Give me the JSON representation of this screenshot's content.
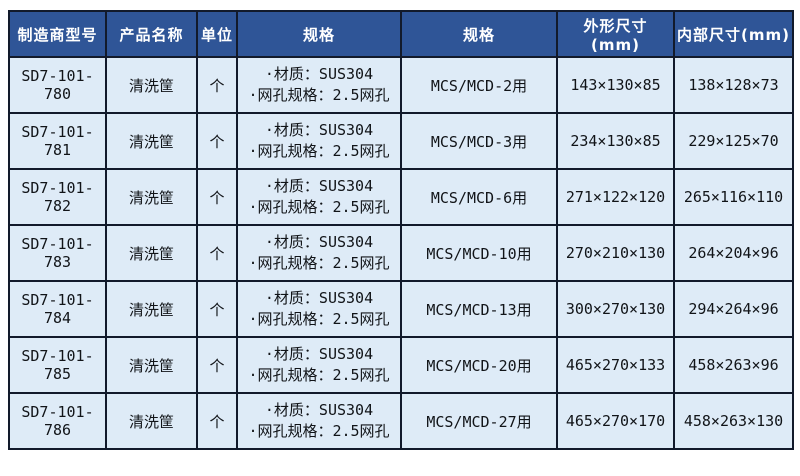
{
  "colors": {
    "header_bg": "#2F5597",
    "header_text": "#FFFFFF",
    "row_bg": "#DEEBF7",
    "body_text": "#111418",
    "grid_border": "#121A2B",
    "page_bg": "#FFFFFF"
  },
  "table": {
    "headers": [
      "制造商型号",
      "产品名称",
      "单位",
      "规格",
      "规格",
      "外形尺寸(mm)",
      "内部尺寸(mm)"
    ],
    "rows": [
      {
        "model": "SD7-101-780",
        "product": "清洗筐",
        "unit": "个",
        "spec_material": "·材质：SUS304",
        "spec_mesh": "·网孔规格：2.5网孔",
        "compat": "MCS/MCD-2用",
        "outer": "143×130×85",
        "inner": "138×128×73"
      },
      {
        "model": "SD7-101-781",
        "product": "清洗筐",
        "unit": "个",
        "spec_material": "·材质：SUS304",
        "spec_mesh": "·网孔规格：2.5网孔",
        "compat": "MCS/MCD-3用",
        "outer": "234×130×85",
        "inner": "229×125×70"
      },
      {
        "model": "SD7-101-782",
        "product": "清洗筐",
        "unit": "个",
        "spec_material": "·材质：SUS304",
        "spec_mesh": "·网孔规格：2.5网孔",
        "compat": "MCS/MCD-6用",
        "outer": "271×122×120",
        "inner": "265×116×110"
      },
      {
        "model": "SD7-101-783",
        "product": "清洗筐",
        "unit": "个",
        "spec_material": "·材质：SUS304",
        "spec_mesh": "·网孔规格：2.5网孔",
        "compat": "MCS/MCD-10用",
        "outer": "270×210×130",
        "inner": "264×204×96"
      },
      {
        "model": "SD7-101-784",
        "product": "清洗筐",
        "unit": "个",
        "spec_material": "·材质：SUS304",
        "spec_mesh": "·网孔规格：2.5网孔",
        "compat": "MCS/MCD-13用",
        "outer": "300×270×130",
        "inner": "294×264×96"
      },
      {
        "model": "SD7-101-785",
        "product": "清洗筐",
        "unit": "个",
        "spec_material": "·材质：SUS304",
        "spec_mesh": "·网孔规格：2.5网孔",
        "compat": "MCS/MCD-20用",
        "outer": "465×270×133",
        "inner": "458×263×96"
      },
      {
        "model": "SD7-101-786",
        "product": "清洗筐",
        "unit": "个",
        "spec_material": "·材质：SUS304",
        "spec_mesh": "·网孔规格：2.5网孔",
        "compat": "MCS/MCD-27用",
        "outer": "465×270×170",
        "inner": "458×263×130"
      }
    ]
  }
}
